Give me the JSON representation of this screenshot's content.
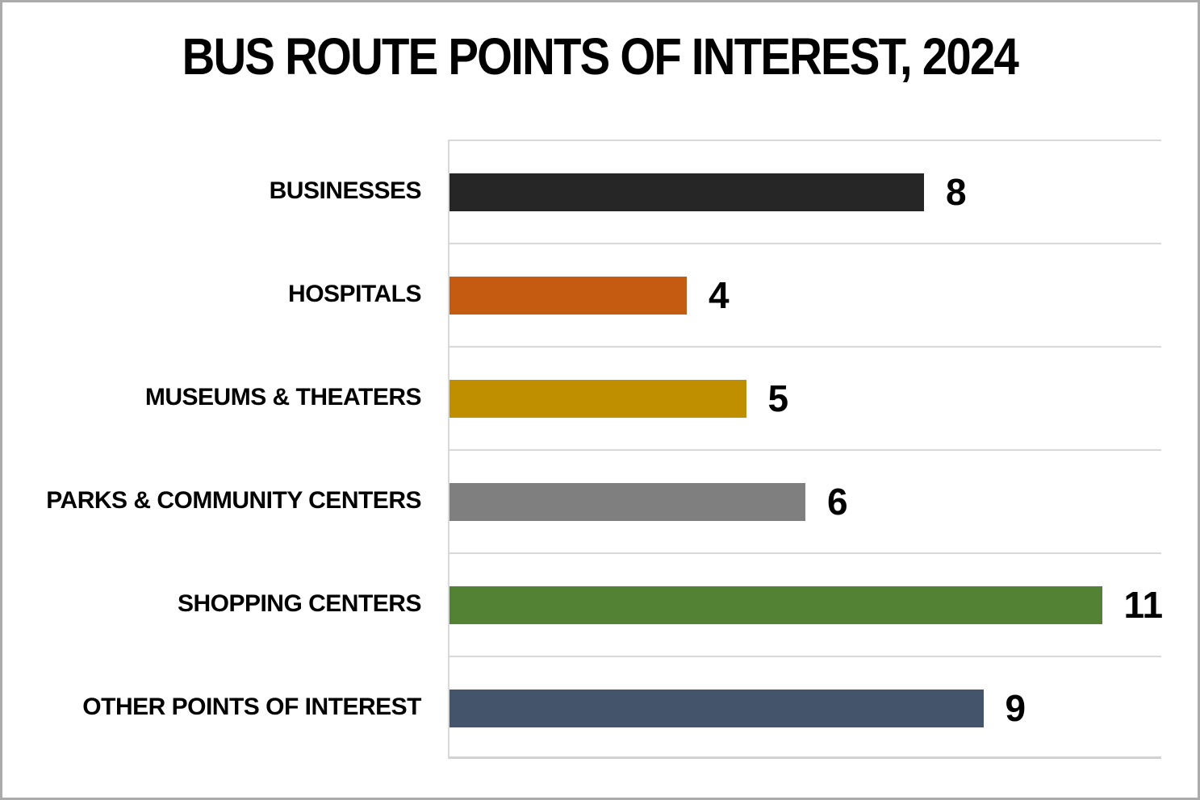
{
  "chart_data": {
    "type": "bar",
    "orientation": "horizontal",
    "title": "BUS ROUTE POINTS OF INTEREST, 2024",
    "categories": [
      "BUSINESSES",
      "HOSPITALS",
      "MUSEUMS & THEATERS",
      "PARKS & COMMUNITY CENTERS",
      "SHOPPING CENTERS",
      "OTHER POINTS OF INTEREST"
    ],
    "values": [
      8,
      4,
      5,
      6,
      11,
      9
    ],
    "value_labels": [
      "8",
      "4",
      "5",
      "6",
      "11",
      "9"
    ],
    "bar_colors": [
      "#262626",
      "#C55A11",
      "#BF8F00",
      "#7F7F7F",
      "#548235",
      "#44546A"
    ],
    "xlim": [
      0,
      12
    ],
    "xlabel": "",
    "ylabel": "",
    "legend": "none",
    "grid": "horizontal category separator lines",
    "gridline_color": "#D9D9D9",
    "page_border_color": "#ABABAB",
    "background_color": "#FFFFFF",
    "text_color": "#000000"
  }
}
